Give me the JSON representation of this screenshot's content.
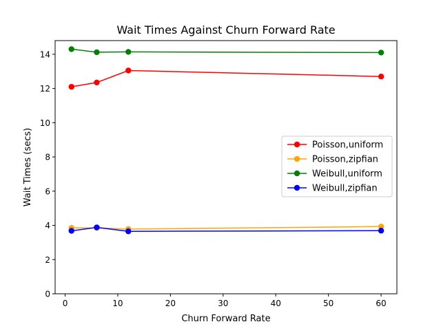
{
  "chart_data": {
    "type": "line",
    "title": "Wait Times Against Churn Forward Rate",
    "xlabel": "Churn Forward Rate",
    "ylabel": "Wait Times (secs)",
    "xlim": [
      -1.9,
      63.0
    ],
    "ylim": [
      0,
      14.8
    ],
    "xticks": [
      0,
      10,
      20,
      30,
      40,
      50,
      60
    ],
    "yticks": [
      0,
      2,
      4,
      6,
      8,
      10,
      12,
      14
    ],
    "x": [
      1.2,
      6,
      12,
      60
    ],
    "grid": false,
    "legend_position": "center-right",
    "series": [
      {
        "name": "Poisson,uniform",
        "color": "#ff0000",
        "marker": "circle",
        "values": [
          12.1,
          12.35,
          13.05,
          12.7
        ]
      },
      {
        "name": "Poisson,zipfian",
        "color": "#ffa500",
        "marker": "circle",
        "values": [
          3.85,
          3.85,
          3.78,
          3.93
        ]
      },
      {
        "name": "Weibull,uniform",
        "color": "#008000",
        "marker": "circle",
        "values": [
          14.3,
          14.12,
          14.14,
          14.1
        ]
      },
      {
        "name": "Weibull,zipfian",
        "color": "#0000ff",
        "marker": "circle",
        "values": [
          3.68,
          3.88,
          3.65,
          3.69
        ]
      }
    ]
  }
}
